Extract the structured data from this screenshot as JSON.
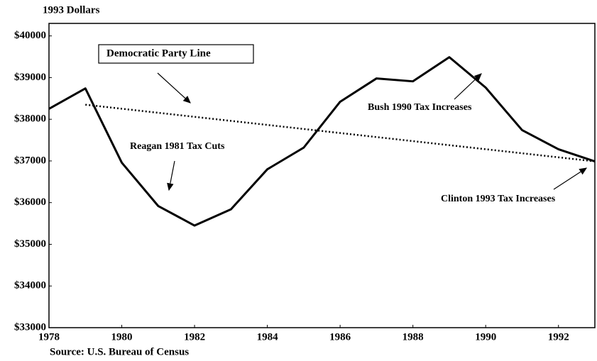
{
  "chart_data": {
    "type": "line",
    "ylabel": "1993 Dollars",
    "source": "Source:  U.S. Bureau of Census",
    "x": [
      1978,
      1979,
      1980,
      1981,
      1982,
      1983,
      1984,
      1985,
      1986,
      1987,
      1988,
      1989,
      1990,
      1991,
      1992,
      1993
    ],
    "series": [
      {
        "color": "#000000",
        "values": [
          38250,
          38740,
          36960,
          35920,
          35450,
          35840,
          36800,
          37320,
          38420,
          38980,
          38910,
          39490,
          38760,
          37740,
          37280,
          36990
        ]
      }
    ],
    "trend": {
      "name": "Democratic Party Line",
      "color": "#000000",
      "x": [
        1979,
        1993
      ],
      "values": [
        38350,
        36990
      ]
    },
    "annotations": [
      "Reagan 1981 Tax Cuts",
      "Bush 1990 Tax Increases",
      "Clinton 1993 Tax Increases"
    ],
    "xlim": [
      1978,
      1993
    ],
    "xticks": [
      1978,
      1980,
      1982,
      1984,
      1986,
      1988,
      1990,
      1992
    ],
    "ylim": [
      33000,
      40300
    ],
    "yticks": [
      {
        "value": 33000,
        "label": "$33000"
      },
      {
        "value": 34000,
        "label": "$34000"
      },
      {
        "value": 35000,
        "label": "$35000"
      },
      {
        "value": 36000,
        "label": "$36000"
      },
      {
        "value": 37000,
        "label": "$37000"
      },
      {
        "value": 38000,
        "label": "$38000"
      },
      {
        "value": 39000,
        "label": "$39000"
      },
      {
        "value": 40000,
        "label": "$40000"
      }
    ],
    "grid": false
  }
}
